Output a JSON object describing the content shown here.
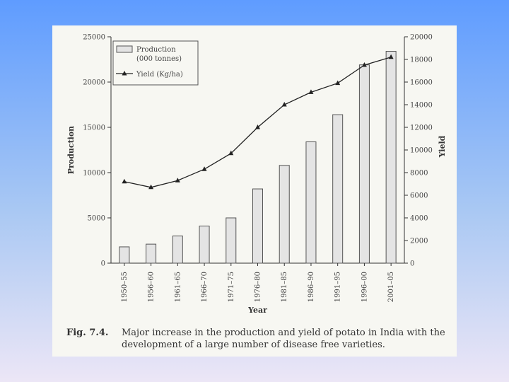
{
  "chart_data": {
    "type": "bar+line",
    "categories": [
      "1950–55",
      "1956–60",
      "1961–65",
      "1966–70",
      "1971–75",
      "1976–80",
      "1981–85",
      "1986–90",
      "1991–95",
      "1996–00",
      "2001–05"
    ],
    "series": [
      {
        "name": "Production (000 tonnes)",
        "type": "bar",
        "axis": "left",
        "values": [
          1800,
          2100,
          3000,
          4100,
          5000,
          8200,
          10800,
          13400,
          16400,
          21900,
          23400
        ]
      },
      {
        "name": "Yield (Kg/ha)",
        "type": "line",
        "axis": "right",
        "values": [
          7200,
          6700,
          7300,
          8300,
          9700,
          12000,
          14000,
          15100,
          15900,
          17500,
          18200
        ]
      }
    ],
    "left_axis": {
      "label": "Production",
      "min": 0,
      "max": 25000,
      "ticks": [
        0,
        5000,
        10000,
        15000,
        20000,
        25000
      ],
      "tick_labels": [
        "0",
        "5000",
        "10000",
        "15000",
        "20000",
        "25000"
      ]
    },
    "right_axis": {
      "label": "Yield",
      "min": 0,
      "max": 20000,
      "ticks": [
        0,
        2000,
        4000,
        6000,
        8000,
        10000,
        12000,
        14000,
        16000,
        18000,
        20000
      ],
      "tick_labels": [
        "0",
        "2000",
        "4000",
        "6000",
        "8000",
        "10000",
        "12000",
        "14000",
        "16000",
        "18000",
        "20000"
      ]
    },
    "xlabel": "Year",
    "legend": {
      "placement": "top-left",
      "production_line1": "Production",
      "production_line2": "(000 tonnes)",
      "yield": "Yield (Kg/ha)"
    },
    "colors": {
      "bar_fill": "#e4e4e4",
      "bar_stroke": "#555555",
      "line": "#222222"
    }
  },
  "caption": {
    "label": "Fig. 7.4.",
    "text": "Major increase in the production and yield of potato in India with the development of a large number of disease free varieties."
  }
}
